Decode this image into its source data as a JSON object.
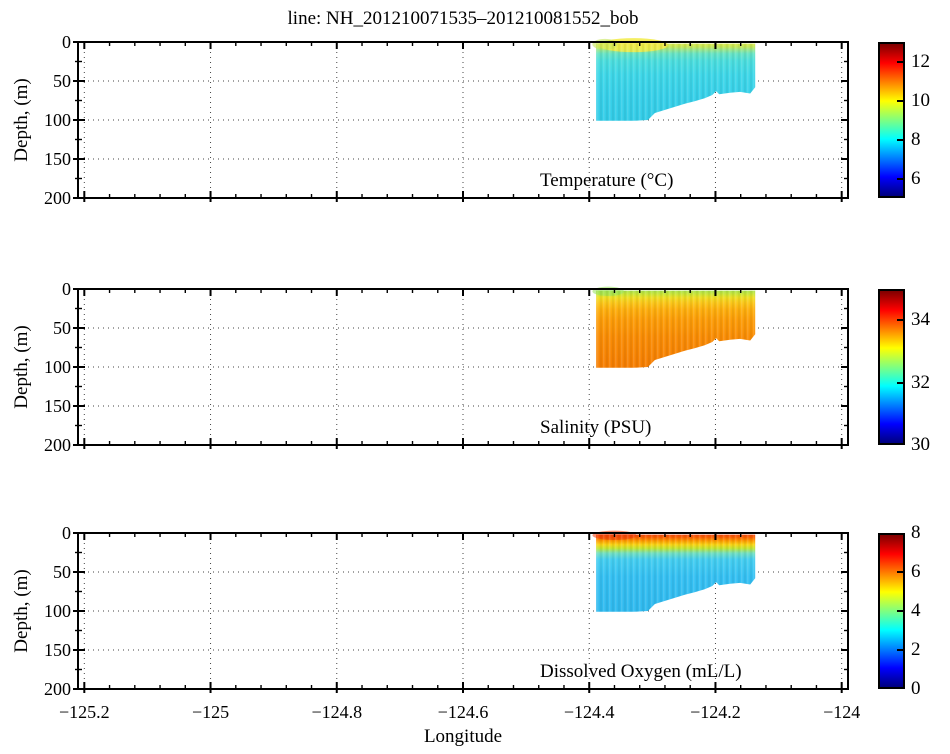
{
  "figure": {
    "title": "line: NH_201210071535–201210081552_bob",
    "xlabel": "Longitude",
    "ylabel": "Depth, (m)",
    "background": "#ffffff",
    "axes": {
      "xlim": [
        -125.21,
        -123.99
      ],
      "ylim": [
        0,
        200
      ],
      "x_major_ticks": [
        -125.2,
        -125,
        -124.8,
        -124.6,
        -124.4,
        -124.2,
        -124
      ],
      "x_tick_labels": [
        "−125.2",
        "−125",
        "−124.8",
        "−124.6",
        "−124.4",
        "−124.2",
        "−124"
      ],
      "y_major_ticks": [
        0,
        50,
        100,
        150,
        200
      ],
      "y_tick_labels": [
        "0",
        "50",
        "100",
        "150",
        "200"
      ],
      "y_minor_step": 25,
      "grid_x": [
        -125.2,
        -125,
        -124.8,
        -124.6,
        -124.4,
        -124.2,
        -124
      ],
      "grid_y": [
        50,
        100,
        150
      ]
    },
    "colorbar_css_stops": [
      "#7f0000 0%",
      "#ff0000 12.5%",
      "#ffff00 37.5%",
      "#00ffff 62.5%",
      "#0000ff 87.5%",
      "#00007f 100%"
    ],
    "patch": {
      "outline": [
        [
          -124.389,
          2
        ],
        [
          -124.137,
          2
        ],
        [
          -124.137,
          58
        ],
        [
          -124.145,
          66
        ],
        [
          -124.161,
          64
        ],
        [
          -124.177,
          65
        ],
        [
          -124.194,
          67
        ],
        [
          -124.199,
          63
        ],
        [
          -124.205,
          68
        ],
        [
          -124.217,
          72
        ],
        [
          -124.233,
          76
        ],
        [
          -124.248,
          79
        ],
        [
          -124.264,
          83
        ],
        [
          -124.28,
          87
        ],
        [
          -124.296,
          91
        ],
        [
          -124.307,
          100
        ],
        [
          -124.33,
          101
        ],
        [
          -124.389,
          101
        ]
      ]
    },
    "panels": [
      {
        "id": "temperature",
        "label": "Temperature (°C)",
        "colorbar": {
          "min": 5,
          "max": 13,
          "ticks": [
            12,
            10,
            8,
            6
          ],
          "tick_labels": [
            "12",
            "10",
            "8",
            "6"
          ]
        },
        "gradient": [
          [
            "0%",
            "#d9e94d"
          ],
          [
            "4%",
            "#c4e655"
          ],
          [
            "8%",
            "#9ae68c"
          ],
          [
            "13%",
            "#67e4c4"
          ],
          [
            "22%",
            "#4cdedd"
          ],
          [
            "40%",
            "#3ed7e8"
          ],
          [
            "70%",
            "#37d0e9"
          ],
          [
            "100%",
            "#33cce7"
          ]
        ],
        "highlights": [
          {
            "lon": -124.33,
            "depth": 4,
            "rx_lon": 0.055,
            "ry_depth": 9,
            "color": "rgba(242,235,70,0.85)"
          },
          {
            "lon": -124.375,
            "depth": 3,
            "rx_lon": 0.02,
            "ry_depth": 7,
            "color": "rgba(200,230,90,0.6)"
          }
        ]
      },
      {
        "id": "salinity",
        "label": "Salinity (PSU)",
        "colorbar": {
          "min": 30,
          "max": 35,
          "ticks": [
            34,
            32,
            30
          ],
          "tick_labels": [
            "34",
            "32",
            "30"
          ]
        },
        "gradient": [
          [
            "0%",
            "#a9e14e"
          ],
          [
            "5%",
            "#cde534"
          ],
          [
            "9%",
            "#eede24"
          ],
          [
            "15%",
            "#fac91a"
          ],
          [
            "24%",
            "#fdb00e"
          ],
          [
            "38%",
            "#fc9c07"
          ],
          [
            "60%",
            "#f98c04"
          ],
          [
            "100%",
            "#f57d02"
          ]
        ],
        "highlights": [
          {
            "lon": -124.37,
            "depth": 3,
            "rx_lon": 0.025,
            "ry_depth": 6,
            "color": "rgba(150,225,90,0.55)"
          }
        ]
      },
      {
        "id": "dissolved-oxygen",
        "label": "Dissolved Oxygen (mL/L)",
        "colorbar": {
          "min": 0,
          "max": 8,
          "ticks": [
            8,
            6,
            4,
            2,
            0
          ],
          "tick_labels": [
            "8",
            "6",
            "4",
            "2",
            "0"
          ]
        },
        "gradient": [
          [
            "0%",
            "#f1480c"
          ],
          [
            "4%",
            "#fa6601"
          ],
          [
            "8%",
            "#fd9900"
          ],
          [
            "13%",
            "#f8d414"
          ],
          [
            "18%",
            "#c0e534"
          ],
          [
            "24%",
            "#72dfc0"
          ],
          [
            "32%",
            "#44cef0"
          ],
          [
            "55%",
            "#35c0f2"
          ],
          [
            "100%",
            "#2fb9ee"
          ]
        ],
        "highlights": [
          {
            "lon": -124.36,
            "depth": 3,
            "rx_lon": 0.035,
            "ry_depth": 6,
            "color": "rgba(240,60,10,0.55)"
          }
        ]
      }
    ]
  },
  "chart_data": [
    {
      "type": "heatmap",
      "title": "Temperature (°C)",
      "variable": "temperature",
      "units": "°C",
      "xlabel": "Longitude",
      "ylabel": "Depth, (m)",
      "xlim": [
        -125.21,
        -123.99
      ],
      "depth_range_m": [
        0,
        200
      ],
      "x_ticks": [
        -125.2,
        -125,
        -124.8,
        -124.6,
        -124.4,
        -124.2,
        -124
      ],
      "y_ticks": [
        0,
        50,
        100,
        150,
        200
      ],
      "colorbar": {
        "range": [
          5,
          13
        ],
        "ticks": [
          6,
          8,
          10,
          12
        ],
        "colormap": "jet"
      },
      "data_extent": {
        "lon": [
          -124.39,
          -124.14
        ],
        "depth_m": [
          0,
          103
        ]
      },
      "bottom_edge": {
        "lon": [
          -124.389,
          -124.33,
          -124.307,
          -124.296,
          -124.28,
          -124.264,
          -124.248,
          -124.233,
          -124.217,
          -124.205,
          -124.199,
          -124.194,
          -124.177,
          -124.161,
          -124.145,
          -124.137
        ],
        "depth_m": [
          101,
          101,
          100,
          91,
          87,
          83,
          79,
          76,
          72,
          68,
          63,
          67,
          65,
          64,
          66,
          58
        ]
      },
      "representative_profile": {
        "depth_m": [
          0,
          5,
          10,
          20,
          40,
          60,
          80,
          100
        ],
        "value": [
          10.2,
          9.6,
          8.9,
          8.5,
          8.2,
          8.1,
          8.0,
          7.9
        ]
      },
      "grid": "dotted",
      "legend_position": "right-colorbar"
    },
    {
      "type": "heatmap",
      "title": "Salinity (PSU)",
      "variable": "salinity",
      "units": "PSU",
      "xlabel": "Longitude",
      "ylabel": "Depth, (m)",
      "xlim": [
        -125.21,
        -123.99
      ],
      "depth_range_m": [
        0,
        200
      ],
      "x_ticks": [
        -125.2,
        -125,
        -124.8,
        -124.6,
        -124.4,
        -124.2,
        -124
      ],
      "y_ticks": [
        0,
        50,
        100,
        150,
        200
      ],
      "colorbar": {
        "range": [
          30,
          35
        ],
        "ticks": [
          30,
          32,
          34
        ],
        "colormap": "jet"
      },
      "data_extent": {
        "lon": [
          -124.39,
          -124.14
        ],
        "depth_m": [
          0,
          103
        ]
      },
      "bottom_edge": {
        "lon": [
          -124.389,
          -124.33,
          -124.307,
          -124.296,
          -124.28,
          -124.264,
          -124.248,
          -124.233,
          -124.217,
          -124.205,
          -124.199,
          -124.194,
          -124.177,
          -124.161,
          -124.145,
          -124.137
        ],
        "depth_m": [
          101,
          101,
          100,
          91,
          87,
          83,
          79,
          76,
          72,
          68,
          63,
          67,
          65,
          64,
          66,
          58
        ]
      },
      "representative_profile": {
        "depth_m": [
          0,
          5,
          10,
          20,
          40,
          60,
          80,
          100
        ],
        "value": [
          32.4,
          32.6,
          33.0,
          33.4,
          33.7,
          33.9,
          34.0,
          34.1
        ]
      },
      "grid": "dotted",
      "legend_position": "right-colorbar"
    },
    {
      "type": "heatmap",
      "title": "Dissolved Oxygen (mL/L)",
      "variable": "dissolved_oxygen",
      "units": "mL/L",
      "xlabel": "Longitude",
      "ylabel": "Depth, (m)",
      "xlim": [
        -125.21,
        -123.99
      ],
      "depth_range_m": [
        0,
        200
      ],
      "x_ticks": [
        -125.2,
        -125,
        -124.8,
        -124.6,
        -124.4,
        -124.2,
        -124
      ],
      "y_ticks": [
        0,
        50,
        100,
        150,
        200
      ],
      "colorbar": {
        "range": [
          0,
          8
        ],
        "ticks": [
          0,
          2,
          4,
          6,
          8
        ],
        "colormap": "jet"
      },
      "data_extent": {
        "lon": [
          -124.39,
          -124.14
        ],
        "depth_m": [
          0,
          103
        ]
      },
      "bottom_edge": {
        "lon": [
          -124.389,
          -124.33,
          -124.307,
          -124.296,
          -124.28,
          -124.264,
          -124.248,
          -124.233,
          -124.217,
          -124.205,
          -124.199,
          -124.194,
          -124.177,
          -124.161,
          -124.145,
          -124.137
        ],
        "depth_m": [
          101,
          101,
          100,
          91,
          87,
          83,
          79,
          76,
          72,
          68,
          63,
          67,
          65,
          64,
          66,
          58
        ]
      },
      "representative_profile": {
        "depth_m": [
          0,
          5,
          10,
          15,
          20,
          30,
          50,
          80,
          100
        ],
        "value": [
          6.9,
          6.2,
          4.9,
          3.6,
          2.6,
          2.2,
          2.0,
          1.9,
          1.9
        ]
      },
      "grid": "dotted",
      "legend_position": "right-colorbar"
    }
  ]
}
